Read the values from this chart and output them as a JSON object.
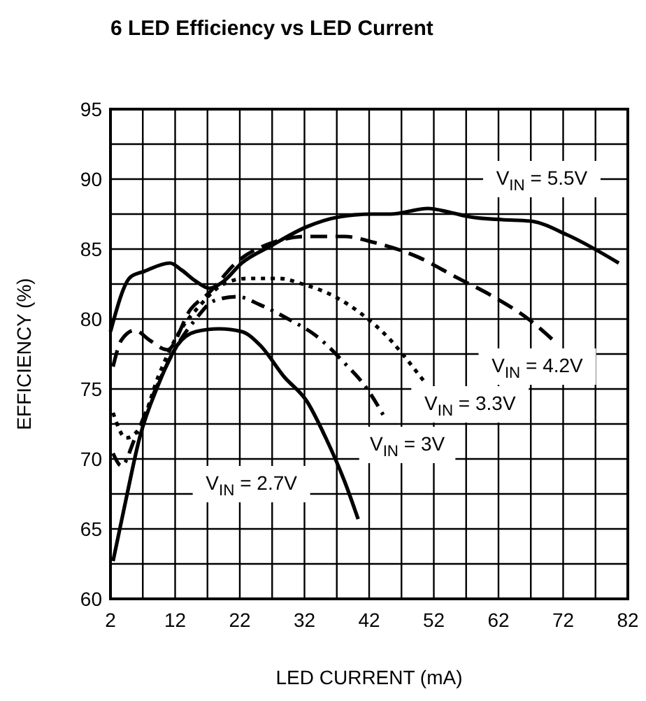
{
  "chart_data": {
    "type": "line",
    "title": "6 LED Efficiency vs LED Current",
    "xlabel": "LED CURRENT (mA)",
    "ylabel": "EFFICIENCY (%)",
    "xlim": [
      2,
      82
    ],
    "xticks": [
      2,
      {
        "value": 7,
        "label": null
      },
      12,
      {
        "value": 17,
        "label": null
      },
      22,
      {
        "value": 27,
        "label": null
      },
      32,
      {
        "value": 37,
        "label": null
      },
      42,
      {
        "value": 47,
        "label": null
      },
      52,
      {
        "value": 57,
        "label": null
      },
      62,
      {
        "value": 67,
        "label": null
      },
      72,
      {
        "value": 77,
        "label": null
      },
      82
    ],
    "ylim": [
      60,
      95
    ],
    "yticks": [
      60,
      {
        "value": 62.5,
        "label": null
      },
      65,
      {
        "value": 67.5,
        "label": null
      },
      70,
      {
        "value": 72.5,
        "label": null
      },
      75,
      {
        "value": 77.5,
        "label": null
      },
      80,
      {
        "value": 82.5,
        "label": null
      },
      85,
      {
        "value": 87.5,
        "label": null
      },
      90,
      {
        "value": 92.5,
        "label": null
      },
      95
    ],
    "grid": true,
    "series": [
      {
        "name": "V$_{IN}$ = 5.5V",
        "color": "#000000",
        "line_style": "solid",
        "x": [
          2,
          5.1,
          7.2,
          11.2,
          13,
          15.2,
          17.3,
          19.5,
          22.3,
          26.7,
          32.4,
          37.4,
          42.5,
          45.3,
          51.1,
          54.7,
          57.6,
          62.6,
          66.9,
          72.7,
          80.6
        ],
        "values": [
          79.1,
          83,
          83.4,
          84,
          83.5,
          82.7,
          82.2,
          82.7,
          84,
          85.2,
          86.6,
          87.3,
          87.5,
          87.5,
          87.9,
          87.6,
          87.3,
          87.1,
          87,
          86,
          84
        ]
      },
      {
        "name": "V$_{IN}$ = 4.2V",
        "color": "#000000",
        "line_style": "dashed",
        "x": [
          2.4,
          3.7,
          5.8,
          8,
          10.8,
          14.4,
          17.3,
          21.6,
          26.7,
          32.4,
          38.2,
          42.5,
          49.7,
          55.4,
          61.2,
          66.9,
          70.9
        ],
        "values": [
          76.6,
          78.5,
          79.2,
          78.5,
          77.8,
          80.7,
          81.9,
          84.1,
          85.4,
          85.9,
          85.9,
          85.5,
          84.4,
          83,
          81.6,
          79.9,
          78.3
        ]
      },
      {
        "name": "V$_{IN}$ = 3.3V",
        "color": "#000000",
        "line_style": "dotted",
        "x": [
          2.4,
          4.4,
          6.5,
          9.4,
          12.3,
          15.9,
          19.5,
          23.1,
          28.1,
          31.7,
          36.7,
          41,
          45.3,
          48.2,
          50.4
        ],
        "values": [
          73.3,
          71.5,
          72.2,
          75.9,
          78.8,
          81,
          82.5,
          82.9,
          82.9,
          82.5,
          81.6,
          80.3,
          78.5,
          76.9,
          75.6
        ]
      },
      {
        "name": "V$_{IN}$ = 3V",
        "color": "#000000",
        "line_style": "dashdot",
        "x": [
          2.4,
          3.7,
          5.8,
          8.7,
          12.3,
          15.2,
          18,
          21.6,
          25.2,
          29.5,
          33.8,
          38.1,
          41.7,
          44.6
        ],
        "values": [
          70.4,
          69.5,
          71.5,
          74.7,
          78.1,
          80,
          81.3,
          81.6,
          81,
          80,
          78.8,
          76.9,
          75,
          72.8
        ]
      },
      {
        "name": "V$_{IN}$ = 2.7V",
        "color": "#000000",
        "line_style": "solid",
        "x": [
          2.4,
          4.4,
          6.5,
          9.4,
          12.3,
          15.2,
          18.8,
          22.3,
          25.2,
          28.8,
          32.4,
          35.3,
          38.2,
          40.3
        ],
        "values": [
          62.7,
          67.1,
          71.5,
          75.3,
          78.1,
          79.1,
          79.3,
          79.1,
          78.1,
          75.9,
          74.1,
          71.5,
          68.4,
          65.7
        ]
      }
    ]
  }
}
